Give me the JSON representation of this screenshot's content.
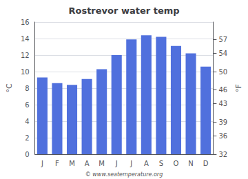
{
  "chart_data": {
    "type": "bar",
    "title": "Rostrevor water temp",
    "categories": [
      "J",
      "F",
      "M",
      "A",
      "M",
      "J",
      "J",
      "A",
      "S",
      "O",
      "N",
      "D"
    ],
    "values": [
      9.3,
      8.6,
      8.4,
      9.1,
      10.3,
      12.0,
      13.9,
      14.4,
      14.2,
      13.1,
      12.2,
      10.6
    ],
    "ylabel": "°C",
    "y2label": "°F",
    "ylim": [
      0,
      16
    ],
    "yticks": [
      0,
      2,
      4,
      6,
      8,
      10,
      12,
      14,
      16
    ],
    "y2lim": [
      32,
      60.8
    ],
    "y2ticks": [
      32,
      36,
      39,
      43,
      46,
      50,
      54,
      57
    ],
    "grid": true,
    "annotations": [
      "© www.seatemperature.org"
    ]
  }
}
